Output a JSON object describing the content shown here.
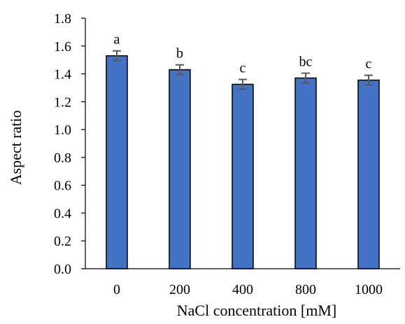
{
  "chart_data": {
    "type": "bar",
    "title": "",
    "xlabel": "NaCl concentration [mM]",
    "ylabel": "Aspect ratio",
    "categories": [
      "0",
      "200",
      "400",
      "800",
      "1000"
    ],
    "values": [
      1.53,
      1.43,
      1.325,
      1.37,
      1.355
    ],
    "errors": [
      0.035,
      0.035,
      0.035,
      0.035,
      0.035
    ],
    "significance": [
      "a",
      "b",
      "c",
      "bc",
      "c"
    ],
    "ylim": [
      0,
      1.8
    ],
    "yticks": [
      "0.0",
      "0.2",
      "0.4",
      "0.6",
      "0.8",
      "1.0",
      "1.2",
      "1.4",
      "1.6",
      "1.8"
    ],
    "grid": false,
    "legend": "none",
    "colors": {
      "bar_fill": "#4472C4",
      "bar_stroke": "#000000",
      "error_bar": "#595959",
      "axis": "#000000"
    }
  }
}
